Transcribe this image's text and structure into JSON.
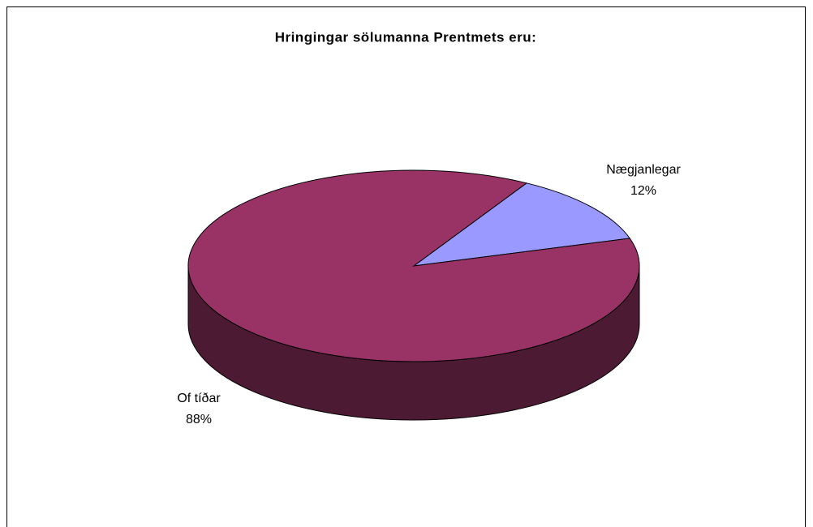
{
  "chart_data": {
    "type": "pie",
    "title": "Hringingar sölumanna Prentmets eru:",
    "categories": [
      "Nægjanlegar",
      "Of tíðar"
    ],
    "values": [
      12,
      88
    ],
    "value_labels": [
      "12%",
      "88%"
    ],
    "colors": [
      "#9999ff",
      "#993366"
    ]
  }
}
